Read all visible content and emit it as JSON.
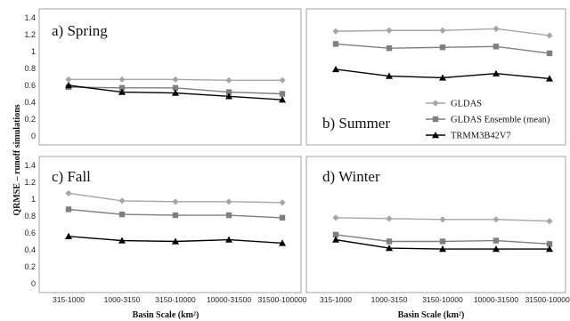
{
  "figure": {
    "ylabel": "QRMSE – runoff simulations",
    "xlabel_top": "Basin Scale (km²)",
    "xlabel_bottom_left": "Basin Scale (km²)",
    "xlabel_bottom_right": "Basin Scale (km²)"
  },
  "legend": [
    {
      "name": "GLDAS",
      "color": "#a6a6a6",
      "marker": "diamond"
    },
    {
      "name": "GLDAS Ensemble (mean)",
      "color": "#7f7f7f",
      "marker": "square"
    },
    {
      "name": "TRMM3B42V7",
      "color": "#000000",
      "marker": "triangle"
    }
  ],
  "chart_data": [
    {
      "type": "line",
      "title": "a) Spring",
      "categories": [
        "315-1000",
        "1000-3150",
        "3150-10000",
        "10000-31500",
        "31500-100000"
      ],
      "ylim": [
        0,
        1.4
      ],
      "yticks": [
        "0",
        "0.2",
        "0.4",
        "0.6",
        "0.8",
        "1",
        "1.2",
        "1.4"
      ],
      "show_xticks": false,
      "show_yticks": true,
      "series": [
        {
          "name": "GLDAS",
          "values": [
            0.67,
            0.67,
            0.67,
            0.66,
            0.66
          ]
        },
        {
          "name": "GLDAS Ensemble (mean)",
          "values": [
            0.58,
            0.57,
            0.57,
            0.52,
            0.5
          ]
        },
        {
          "name": "TRMM3B42V7",
          "values": [
            0.6,
            0.52,
            0.51,
            0.47,
            0.43
          ]
        }
      ]
    },
    {
      "type": "line",
      "title": "b) Summer",
      "categories": [
        "315-1000",
        "1000-3150",
        "3150-10000",
        "10000-31500",
        "31500-100000"
      ],
      "ylim": [
        0,
        1.4
      ],
      "yticks": [
        "0",
        "0.2",
        "0.4",
        "0.6",
        "0.8",
        "1",
        "1.2",
        "1.4"
      ],
      "show_xticks": false,
      "show_yticks": false,
      "series": [
        {
          "name": "GLDAS",
          "values": [
            1.24,
            1.25,
            1.25,
            1.27,
            1.19
          ]
        },
        {
          "name": "GLDAS Ensemble (mean)",
          "values": [
            1.09,
            1.04,
            1.05,
            1.06,
            0.98
          ]
        },
        {
          "name": "TRMM3B42V7",
          "values": [
            0.79,
            0.71,
            0.69,
            0.74,
            0.68
          ]
        }
      ]
    },
    {
      "type": "line",
      "title": "c) Fall",
      "categories": [
        "315-1000",
        "1000-3150",
        "3150-10000",
        "10000-31500",
        "31500-100000"
      ],
      "ylim": [
        0,
        1.4
      ],
      "yticks": [
        "0",
        "0.2",
        "0.4",
        "0.6",
        "0.8",
        "1",
        "1.2",
        "1.4"
      ],
      "show_xticks": true,
      "show_yticks": true,
      "series": [
        {
          "name": "GLDAS",
          "values": [
            1.07,
            0.98,
            0.97,
            0.97,
            0.96
          ]
        },
        {
          "name": "GLDAS Ensemble (mean)",
          "values": [
            0.88,
            0.82,
            0.81,
            0.81,
            0.78
          ]
        },
        {
          "name": "TRMM3B42V7",
          "values": [
            0.56,
            0.51,
            0.5,
            0.52,
            0.48
          ]
        }
      ]
    },
    {
      "type": "line",
      "title": "d) Winter",
      "categories": [
        "315-1000",
        "1000-3150",
        "3150-10000",
        "10000-31500",
        "31500-100000"
      ],
      "ylim": [
        0,
        1.4
      ],
      "yticks": [
        "0",
        "0.2",
        "0.4",
        "0.6",
        "0.8",
        "1",
        "1.2",
        "1.4"
      ],
      "show_xticks": true,
      "show_yticks": false,
      "series": [
        {
          "name": "GLDAS",
          "values": [
            0.78,
            0.77,
            0.76,
            0.76,
            0.74
          ]
        },
        {
          "name": "GLDAS Ensemble (mean)",
          "values": [
            0.58,
            0.5,
            0.5,
            0.51,
            0.47
          ]
        },
        {
          "name": "TRMM3B42V7",
          "values": [
            0.52,
            0.42,
            0.41,
            0.41,
            0.41
          ]
        }
      ]
    }
  ]
}
